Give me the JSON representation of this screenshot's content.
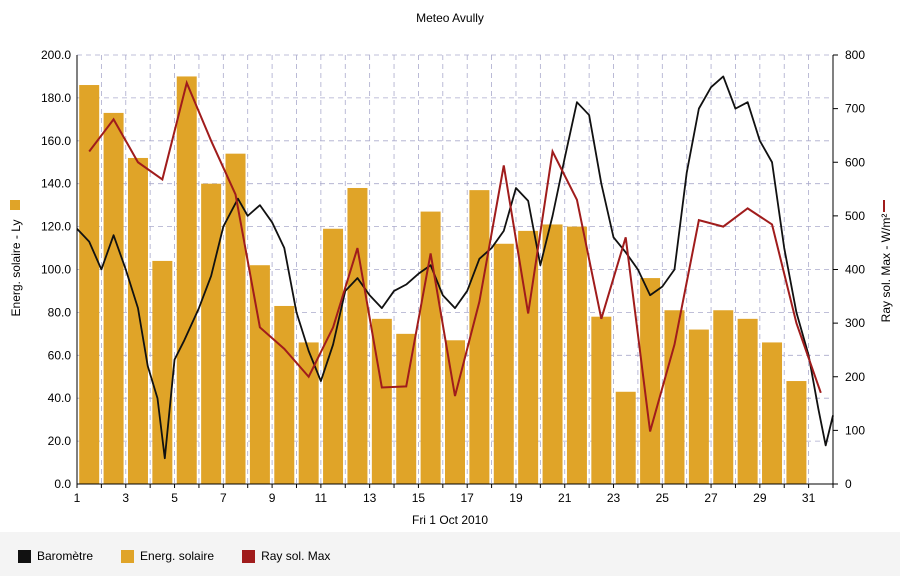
{
  "chart_data": {
    "type": "bar",
    "title": "Meteo  Avully",
    "xlabel": "Fri 1 Oct 2010",
    "ylabel_left": "Energ. solaire - Ly",
    "ylabel_right": "Ray sol. Max - W/m²",
    "xlim": [
      1,
      32
    ],
    "ylim_left": [
      0,
      200
    ],
    "ylim_right": [
      0,
      800
    ],
    "x_ticks": [
      "1",
      "3",
      "5",
      "7",
      "9",
      "11",
      "13",
      "15",
      "17",
      "19",
      "21",
      "23",
      "25",
      "27",
      "29",
      "31"
    ],
    "y_ticks_left": [
      "0.0",
      "20.0",
      "40.0",
      "60.0",
      "80.0",
      "100.0",
      "120.0",
      "140.0",
      "160.0",
      "180.0",
      "200.0"
    ],
    "y_ticks_right": [
      "0",
      "100",
      "200",
      "300",
      "400",
      "500",
      "600",
      "700",
      "800"
    ],
    "grid": true,
    "legend_position": "bottom-left",
    "series": [
      {
        "name": "Energ. solaire",
        "kind": "bar",
        "axis": "left",
        "color": "#e0a428",
        "values": [
          186,
          173,
          152,
          104,
          190,
          140,
          154,
          102,
          83,
          66,
          119,
          138,
          77,
          70,
          127,
          67,
          137,
          112,
          118,
          121,
          120,
          78,
          43,
          96,
          81,
          72,
          81,
          77,
          66,
          48
        ]
      },
      {
        "name": "Ray sol. Max",
        "kind": "line",
        "axis": "right",
        "color": "#a01c1c",
        "values": [
          620,
          680,
          600,
          568,
          748,
          640,
          540,
          292,
          252,
          200,
          292,
          440,
          180,
          182,
          430,
          164,
          340,
          594,
          318,
          620,
          530,
          308,
          460,
          98,
          260,
          492,
          480,
          514,
          484,
          300,
          170
        ]
      },
      {
        "name": "Baromètre",
        "kind": "line",
        "axis": "left",
        "color": "#111111",
        "x": [
          1,
          1.5,
          2,
          2.5,
          3,
          3.5,
          3.9,
          4.3,
          4.6,
          5.0,
          5.4,
          6.0,
          6.5,
          7.0,
          7.6,
          8.0,
          8.5,
          9.0,
          9.5,
          10.0,
          10.5,
          11.0,
          11.5,
          12.0,
          12.5,
          13.0,
          13.5,
          14.0,
          14.5,
          15.0,
          15.5,
          16.0,
          16.5,
          17.0,
          17.5,
          18.0,
          18.5,
          19.0,
          19.5,
          20.0,
          20.5,
          21.0,
          21.5,
          22.0,
          22.5,
          23.0,
          23.5,
          24.0,
          24.5,
          25.0,
          25.5,
          26.0,
          26.5,
          27.0,
          27.5,
          28.0,
          28.5,
          29.0,
          29.5,
          30.0,
          30.5,
          31.0,
          31.4,
          31.7,
          32.0
        ],
        "values": [
          119,
          113,
          100,
          116,
          100,
          82,
          55,
          40,
          12,
          58,
          67,
          82,
          97,
          120,
          133,
          125,
          130,
          122,
          110,
          80,
          62,
          48,
          65,
          90,
          96,
          88,
          82,
          90,
          93,
          98,
          102,
          88,
          82,
          90,
          105,
          110,
          118,
          138,
          132,
          102,
          125,
          152,
          178,
          172,
          140,
          115,
          108,
          100,
          88,
          92,
          100,
          145,
          175,
          185,
          190,
          175,
          178,
          160,
          150,
          110,
          80,
          60,
          35,
          18,
          32
        ]
      }
    ]
  },
  "legend": [
    {
      "label": "Baromètre",
      "color": "#111111"
    },
    {
      "label": "Energ. solaire",
      "color": "#e0a428"
    },
    {
      "label": "Ray sol. Max",
      "color": "#a01c1c"
    }
  ]
}
